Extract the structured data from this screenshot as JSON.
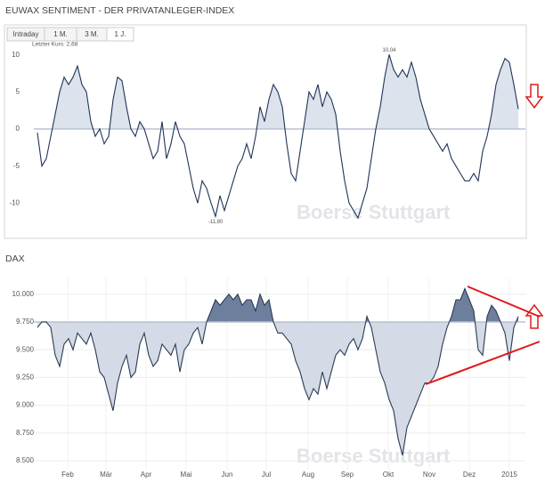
{
  "controls": {
    "tabs": [
      "Intraday",
      "1 M.",
      "3 M.",
      "1 J."
    ],
    "last_price_label": "Letzter Kurs: 2,68"
  },
  "chart_data": [
    {
      "type": "line",
      "title": "EUWAX SENTIMENT - DER PRIVATANLEGER-INDEX",
      "watermark": "Boerse Stuttgart",
      "color": "#1f3457",
      "fill_above": "#dde3ec",
      "baseline": 0,
      "xlim": [
        0,
        108
      ],
      "ylim": [
        -12.6,
        10.8
      ],
      "yticks": [
        10,
        5,
        0,
        -5,
        -10
      ],
      "grid": false,
      "annotations": [
        {
          "text": "10,04",
          "x": 79,
          "y": 10.04
        },
        {
          "text": "-11,80",
          "x": 40,
          "y": -11.8
        }
      ],
      "values": [
        -0.5,
        -5,
        -4,
        -1,
        2,
        5,
        7,
        6,
        7,
        8.5,
        6,
        5,
        1,
        -1,
        0,
        -2,
        -1,
        4,
        7,
        6.5,
        3,
        0,
        -1,
        1,
        0,
        -2,
        -4,
        -3,
        1,
        -4,
        -2,
        1,
        -1,
        -2,
        -5,
        -8,
        -10,
        -7,
        -8,
        -10,
        -11.8,
        -9,
        -11,
        -9,
        -7,
        -5,
        -4,
        -2,
        -4,
        -1,
        3,
        1,
        4,
        6,
        5,
        3,
        -2,
        -6,
        -7,
        -3,
        1,
        5,
        4,
        6,
        3,
        5,
        4,
        2,
        -3,
        -7,
        -10,
        -11,
        -12,
        -10,
        -8,
        -4,
        0,
        3,
        7,
        10.04,
        8,
        7,
        8,
        7,
        9,
        7,
        4,
        2,
        0,
        -1,
        -2,
        -3,
        -2,
        -4,
        -5,
        -6,
        -7,
        -7,
        -6,
        -7,
        -3,
        -1,
        2,
        6,
        8,
        9.5,
        9,
        6,
        2.68
      ]
    },
    {
      "type": "line",
      "title": "DAX",
      "watermark": "Boerse Stuttgart",
      "color": "#2a3a55",
      "fill_above": "#6d7f9c",
      "fill_below": "#d4dbe6",
      "baseline": 9750,
      "xlim": [
        0,
        108
      ],
      "ylim": [
        8420,
        10150
      ],
      "grid": true,
      "yticks": [
        {
          "value": 10000,
          "label": "10.000"
        },
        {
          "value": 9750,
          "label": "9.750"
        },
        {
          "value": 9500,
          "label": "9.500"
        },
        {
          "value": 9250,
          "label": "9.250"
        },
        {
          "value": 9000,
          "label": "9.000"
        },
        {
          "value": 8750,
          "label": "8.750"
        },
        {
          "value": 8500,
          "label": "8.500"
        }
      ],
      "xticks": [
        {
          "value": 6.8,
          "label": "Feb"
        },
        {
          "value": 15.4,
          "label": "Mär"
        },
        {
          "value": 24.4,
          "label": "Apr"
        },
        {
          "value": 33.4,
          "label": "Mai"
        },
        {
          "value": 42.6,
          "label": "Jun"
        },
        {
          "value": 51.4,
          "label": "Jul"
        },
        {
          "value": 60.8,
          "label": "Aug"
        },
        {
          "value": 69.6,
          "label": "Sep"
        },
        {
          "value": 78.8,
          "label": "Okt"
        },
        {
          "value": 88,
          "label": "Nov"
        },
        {
          "value": 97,
          "label": "Dez"
        },
        {
          "value": 106,
          "label": "2015"
        }
      ],
      "values": [
        9700,
        9750,
        9750,
        9700,
        9450,
        9350,
        9550,
        9600,
        9500,
        9650,
        9600,
        9550,
        9650,
        9500,
        9300,
        9250,
        9100,
        8950,
        9200,
        9350,
        9450,
        9250,
        9300,
        9550,
        9650,
        9450,
        9350,
        9400,
        9550,
        9500,
        9450,
        9550,
        9300,
        9500,
        9550,
        9650,
        9700,
        9550,
        9750,
        9850,
        9950,
        9900,
        9950,
        10000,
        9950,
        10000,
        9900,
        9950,
        9950,
        9850,
        10000,
        9900,
        9950,
        9750,
        9650,
        9650,
        9600,
        9550,
        9400,
        9300,
        9150,
        9050,
        9150,
        9100,
        9300,
        9150,
        9300,
        9450,
        9500,
        9450,
        9550,
        9600,
        9500,
        9600,
        9800,
        9700,
        9500,
        9300,
        9200,
        9050,
        8950,
        8700,
        8550,
        8800,
        8900,
        9000,
        9100,
        9200,
        9200,
        9250,
        9350,
        9550,
        9700,
        9800,
        9950,
        9950,
        10050,
        9950,
        9850,
        9500,
        9450,
        9800,
        9900,
        9850,
        9750,
        9650,
        9400,
        9700,
        9800
      ]
    }
  ]
}
